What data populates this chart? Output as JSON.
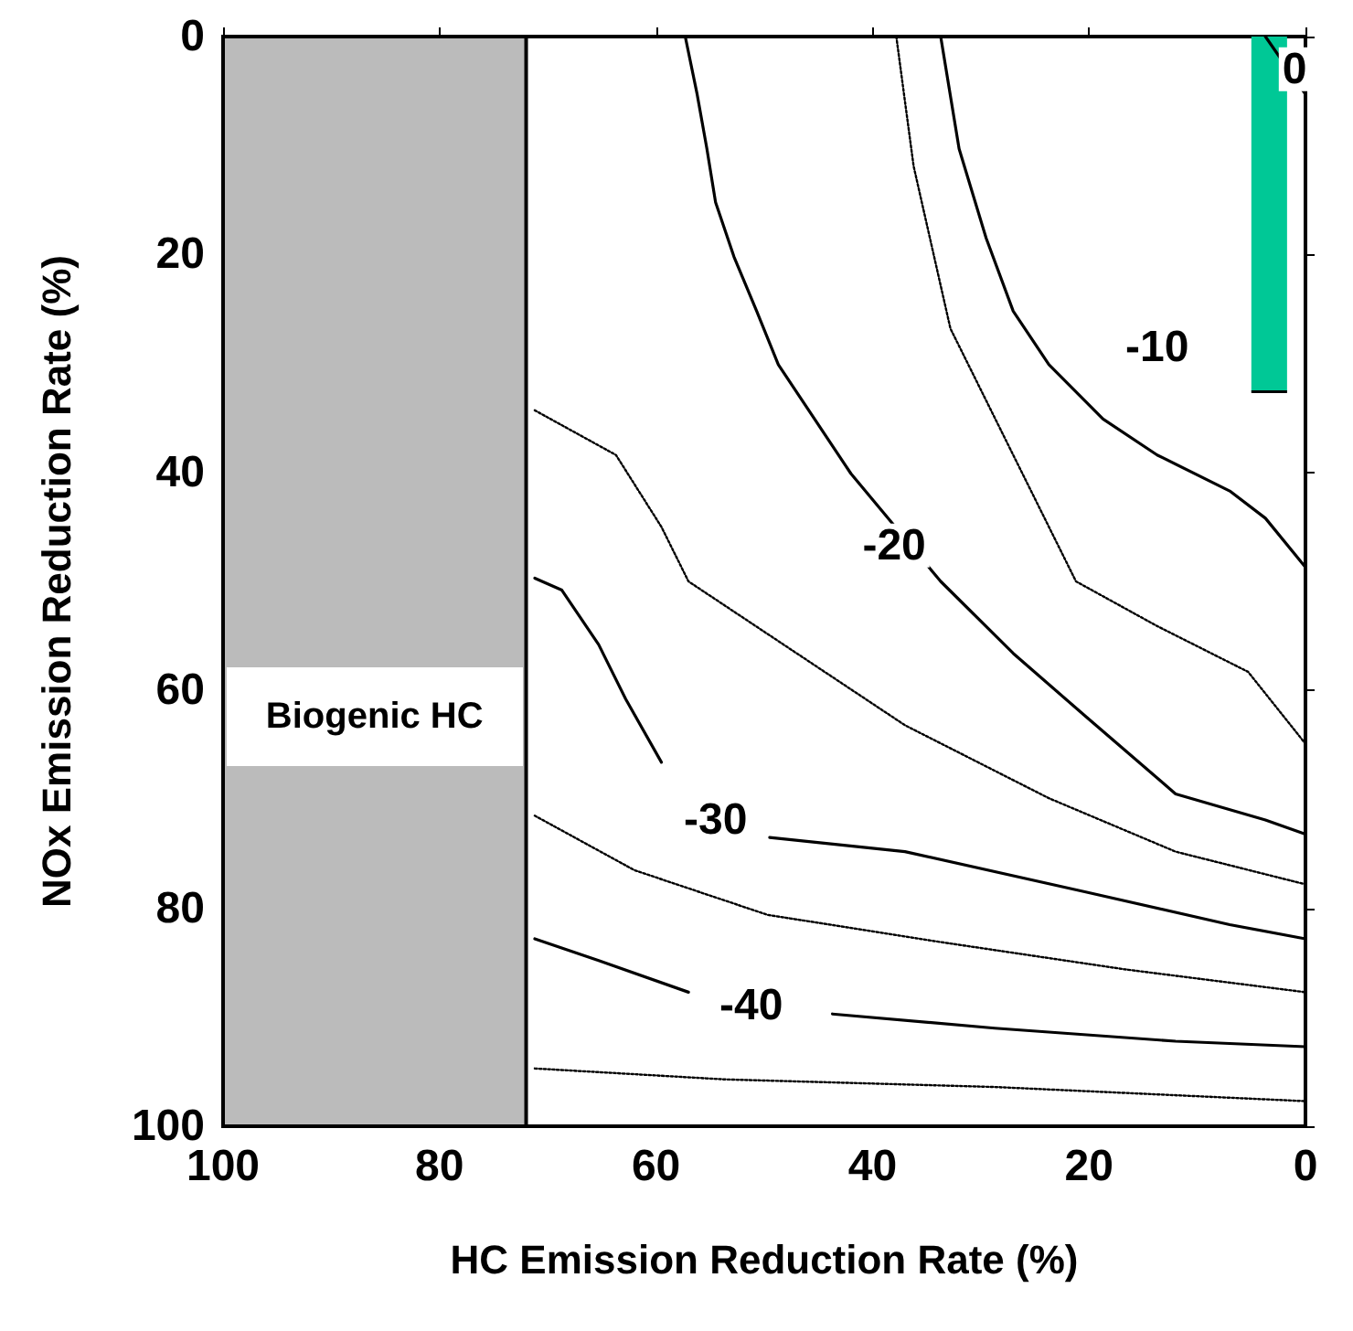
{
  "chart_data": {
    "type": "line",
    "xlabel": "HC Emission Reduction Rate (%)",
    "ylabel": "NOx Emission Reduction Rate (%)",
    "xlim": [
      100,
      0
    ],
    "xticks": [
      100,
      80,
      60,
      40,
      20,
      0
    ],
    "ylim": [
      100,
      0
    ],
    "yticks": [
      0,
      20,
      40,
      60,
      80,
      100
    ],
    "grid": false,
    "marker": "none",
    "series": [
      {
        "type": "area",
        "color": "#00c896",
        "line_style": "solid",
        "x": [
          5,
          1.7
        ],
        "values": [
          32.6,
          32.6
        ]
      },
      {
        "color": "#000000",
        "line_style": "solid",
        "x": [
          3.7,
          0
        ],
        "values": [
          0,
          5.3
        ]
      },
      {
        "color": "#000000",
        "line_style": "dotted",
        "x": [
          37.8,
          36.2,
          32.8,
          27,
          21.2,
          13.7,
          5.3,
          0
        ],
        "values": [
          0,
          11.9,
          26.8,
          38.4,
          50,
          54.1,
          58.3,
          64.9
        ]
      },
      {
        "color": "#000000",
        "line_style": "solid",
        "x": [
          33.7,
          32,
          29.5,
          27,
          23.7,
          18.7,
          13.7,
          7,
          3.7,
          0
        ],
        "values": [
          0,
          10.3,
          18.5,
          25.2,
          30.1,
          35.1,
          38.4,
          41.7,
          44.2,
          48.7
        ]
      },
      {
        "color": "#000000",
        "line_style": "dotted",
        "x": [
          71.2,
          63.7,
          59.5,
          57,
          47,
          37,
          23.7,
          12,
          0
        ],
        "values": [
          34.3,
          38.4,
          45,
          50,
          56.6,
          63.2,
          69.9,
          74.8,
          77.8
        ]
      },
      {
        "color": "#000000",
        "line_style": "solid",
        "x": [
          57.3,
          56.2,
          55.3,
          54.5,
          52.8,
          50.7,
          48.7,
          42,
          33.7,
          27,
          20.3,
          12,
          3.7,
          0
        ],
        "values": [
          0,
          5.3,
          10.3,
          15.2,
          20.2,
          25.2,
          30.1,
          40.1,
          50,
          56.6,
          62.4,
          69.5,
          71.9,
          73.2
        ]
      },
      {
        "color": "#000000",
        "line_style": "dotted",
        "x": [
          71.2,
          62,
          49.7,
          33.7,
          16.7,
          0
        ],
        "values": [
          71.5,
          76.5,
          80.6,
          83.1,
          85.6,
          87.7
        ]
      },
      {
        "color": "#000000",
        "line_style": "solid",
        "x": [
          71.2,
          68.7,
          65.3,
          62.8,
          59.5,
          54.5,
          49.5,
          37,
          20.3,
          7,
          0
        ],
        "values": [
          49.7,
          50.8,
          55.8,
          60.8,
          66.6,
          null,
          73.5,
          74.8,
          78.5,
          81.5,
          82.8
        ]
      },
      {
        "color": "#000000",
        "line_style": "dotted",
        "x": [
          71.2,
          53.7,
          28.7,
          0
        ],
        "values": [
          94.7,
          95.7,
          96.4,
          97.7
        ]
      },
      {
        "color": "#000000",
        "line_style": "solid",
        "x": [
          71.2,
          65.3,
          57,
          51.2,
          43.7,
          28.7,
          12,
          0
        ],
        "values": [
          82.8,
          84.8,
          87.7,
          null,
          89.7,
          91,
          92.2,
          92.7
        ]
      }
    ],
    "bands": [
      {
        "axis": "x",
        "from": 100,
        "to": 72,
        "label": "Biogenic HC",
        "color": "#bbbbbb"
      }
    ],
    "annotations": [
      {
        "text": "0",
        "x": 1,
        "y": 3
      },
      {
        "text": "-10",
        "x": 13.7,
        "y": 28.5
      },
      {
        "text": "-20",
        "x": 38,
        "y": 46.7
      },
      {
        "text": "-30",
        "x": 54.5,
        "y": 71.9
      },
      {
        "text": "-40",
        "x": 51.2,
        "y": 88.9
      }
    ]
  }
}
